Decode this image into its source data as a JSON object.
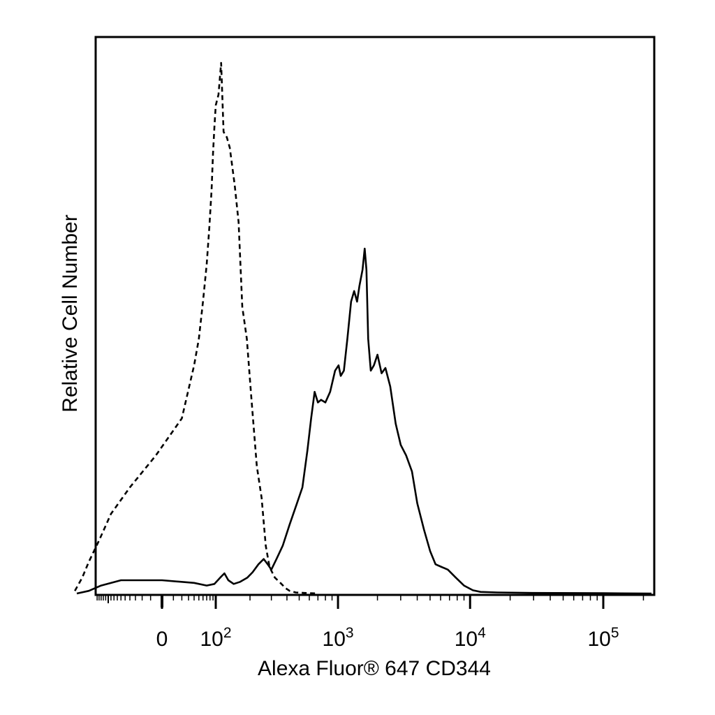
{
  "chart_data": {
    "type": "line",
    "title": "",
    "xlabel": "Alexa Fluor® 647 CD344",
    "ylabel": "Relative Cell Number",
    "x_scale": "biexponential",
    "y_scale": "linear",
    "grid": false,
    "legend": "none",
    "x_ticks": [
      {
        "value": 0,
        "base": "0",
        "exp": ""
      },
      {
        "value": 100,
        "base": "10",
        "exp": "2"
      },
      {
        "value": 1000,
        "base": "10",
        "exp": "3"
      },
      {
        "value": 10000,
        "base": "10",
        "exp": "4"
      },
      {
        "value": 100000,
        "base": "10",
        "exp": "5"
      }
    ],
    "x_range": [
      -400,
      250000
    ],
    "y_range": [
      0,
      100
    ],
    "series": [
      {
        "style": "dashed",
        "points": [
          [
            -320,
            0.5
          ],
          [
            -250,
            3
          ],
          [
            -200,
            6
          ],
          [
            -140,
            10
          ],
          [
            -90,
            15
          ],
          [
            -40,
            20
          ],
          [
            -5,
            26
          ],
          [
            20,
            33
          ],
          [
            40,
            43
          ],
          [
            50,
            48
          ],
          [
            60,
            55
          ],
          [
            70,
            62
          ],
          [
            78,
            69
          ],
          [
            85,
            76
          ],
          [
            90,
            83
          ],
          [
            95,
            88
          ],
          [
            100,
            92
          ],
          [
            106,
            94
          ],
          [
            112,
            100
          ],
          [
            118,
            87
          ],
          [
            126,
            86
          ],
          [
            134,
            84
          ],
          [
            148,
            77
          ],
          [
            160,
            70
          ],
          [
            172,
            54
          ],
          [
            188,
            48
          ],
          [
            205,
            37
          ],
          [
            228,
            24
          ],
          [
            250,
            18
          ],
          [
            270,
            9
          ],
          [
            290,
            5
          ],
          [
            320,
            3
          ],
          [
            355,
            2
          ],
          [
            390,
            1
          ],
          [
            420,
            0.5
          ],
          [
            470,
            0.2
          ],
          [
            550,
            0.1
          ],
          [
            700,
            0
          ]
        ]
      },
      {
        "style": "solid",
        "points": [
          [
            -300,
            0
          ],
          [
            -200,
            0.5
          ],
          [
            -130,
            1.5
          ],
          [
            -60,
            2.5
          ],
          [
            0,
            2.5
          ],
          [
            40,
            2
          ],
          [
            70,
            1.5
          ],
          [
            95,
            1.8
          ],
          [
            110,
            3
          ],
          [
            120,
            3.8
          ],
          [
            130,
            2.5
          ],
          [
            145,
            1.8
          ],
          [
            165,
            2.2
          ],
          [
            190,
            3
          ],
          [
            210,
            4
          ],
          [
            235,
            5.5
          ],
          [
            260,
            6.5
          ],
          [
            280,
            5.5
          ],
          [
            300,
            4.5
          ],
          [
            330,
            6.5
          ],
          [
            370,
            9
          ],
          [
            420,
            13
          ],
          [
            480,
            17
          ],
          [
            530,
            20
          ],
          [
            580,
            27
          ],
          [
            620,
            33
          ],
          [
            660,
            38
          ],
          [
            700,
            36
          ],
          [
            740,
            36.5
          ],
          [
            800,
            36
          ],
          [
            870,
            38
          ],
          [
            950,
            42
          ],
          [
            1010,
            43
          ],
          [
            1050,
            41
          ],
          [
            1110,
            42
          ],
          [
            1180,
            48
          ],
          [
            1260,
            55
          ],
          [
            1330,
            57
          ],
          [
            1400,
            55
          ],
          [
            1460,
            58
          ],
          [
            1540,
            61
          ],
          [
            1600,
            65
          ],
          [
            1650,
            61
          ],
          [
            1700,
            48
          ],
          [
            1780,
            42
          ],
          [
            1880,
            43
          ],
          [
            2000,
            45
          ],
          [
            2150,
            41.5
          ],
          [
            2300,
            42.5
          ],
          [
            2500,
            39
          ],
          [
            2750,
            32
          ],
          [
            3000,
            28
          ],
          [
            3300,
            26
          ],
          [
            3650,
            23
          ],
          [
            4000,
            17
          ],
          [
            4500,
            12
          ],
          [
            5000,
            8
          ],
          [
            5500,
            5.5
          ],
          [
            6100,
            5
          ],
          [
            6800,
            4.5
          ],
          [
            7800,
            3
          ],
          [
            9000,
            1.5
          ],
          [
            10500,
            0.6
          ],
          [
            12000,
            0.3
          ],
          [
            16000,
            0.2
          ],
          [
            30000,
            0.1
          ],
          [
            100000,
            0.05
          ],
          [
            230000,
            0
          ]
        ]
      }
    ]
  }
}
